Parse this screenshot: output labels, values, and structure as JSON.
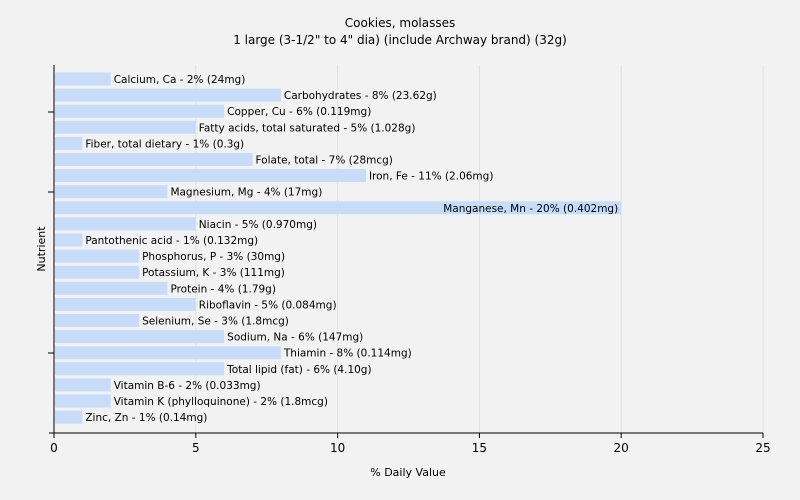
{
  "chart_data": {
    "type": "bar",
    "orientation": "horizontal",
    "title": "Cookies, molasses",
    "subtitle": "1 large (3-1/2\" to 4\" dia) (include Archway brand) (32g)",
    "xlabel": "% Daily Value",
    "ylabel": "Nutrient",
    "xlim": [
      0,
      25
    ],
    "xticks": [
      0,
      5,
      10,
      15,
      20,
      25
    ],
    "grid": "vertical",
    "legend": "none",
    "bar_color": "#c6dcf8",
    "categories": [
      "Calcium, Ca",
      "Carbohydrates",
      "Copper, Cu",
      "Fatty acids, total saturated",
      "Fiber, total dietary",
      "Folate, total",
      "Iron, Fe",
      "Magnesium, Mg",
      "Manganese, Mn",
      "Niacin",
      "Pantothenic acid",
      "Phosphorus, P",
      "Potassium, K",
      "Protein",
      "Riboflavin",
      "Selenium, Se",
      "Sodium, Na",
      "Thiamin",
      "Total lipid (fat)",
      "Vitamin B-6",
      "Vitamin K (phylloquinone)",
      "Zinc, Zn"
    ],
    "values": [
      2,
      8,
      6,
      5,
      1,
      7,
      11,
      4,
      20,
      5,
      1,
      3,
      3,
      4,
      5,
      3,
      6,
      8,
      6,
      2,
      2,
      1
    ],
    "labels": [
      "Calcium, Ca - 2% (24mg)",
      "Carbohydrates - 8% (23.62g)",
      "Copper, Cu - 6% (0.119mg)",
      "Fatty acids, total saturated - 5% (1.028g)",
      "Fiber, total dietary - 1% (0.3g)",
      "Folate, total - 7% (28mcg)",
      "Iron, Fe - 11% (2.06mg)",
      "Magnesium, Mg - 4% (17mg)",
      "Manganese, Mn - 20% (0.402mg)",
      "Niacin - 5% (0.970mg)",
      "Pantothenic acid - 1% (0.132mg)",
      "Phosphorus, P - 3% (30mg)",
      "Potassium, K - 3% (111mg)",
      "Protein - 4% (1.79g)",
      "Riboflavin - 5% (0.084mg)",
      "Selenium, Se - 3% (1.8mcg)",
      "Sodium, Na - 6% (147mg)",
      "Thiamin - 8% (0.114mg)",
      "Total lipid (fat) - 6% (4.10g)",
      "Vitamin B-6 - 2% (0.033mg)",
      "Vitamin K (phylloquinone) - 2% (1.8mcg)",
      "Zinc, Zn - 1% (0.14mg)"
    ]
  }
}
